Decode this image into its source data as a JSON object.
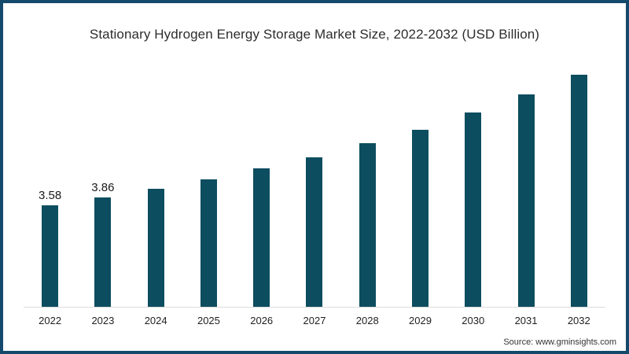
{
  "title": "Stationary Hydrogen Energy Storage Market Size, 2022-2032 (USD Billion)",
  "source_credit": "Source: www.gminsights.com",
  "colors": {
    "bar": "#0d4d60",
    "frame_border": "#14496b",
    "axis_line": "#dcdcdc",
    "title_text": "#2d2d2d",
    "label_text": "#1a1a1a",
    "background": "#ffffff"
  },
  "chart_data": {
    "type": "bar",
    "title": "Stationary Hydrogen Energy Storage Market Size, 2022-2032 (USD Billion)",
    "categories": [
      "2022",
      "2023",
      "2024",
      "2025",
      "2026",
      "2027",
      "2028",
      "2029",
      "2030",
      "2031",
      "2032"
    ],
    "values": [
      3.58,
      3.86,
      4.16,
      4.5,
      4.88,
      5.27,
      5.76,
      6.24,
      6.85,
      7.49,
      8.19
    ],
    "value_labels": [
      "3.58",
      "3.86",
      "",
      "",
      "",
      "",
      "",
      "",
      "",
      "",
      ""
    ],
    "xlabel": "",
    "ylabel": "",
    "ylim": [
      0,
      8.6
    ],
    "grid": false,
    "legend": false,
    "bar_color": "#0d4d60",
    "source": "Source: www.gminsights.com"
  }
}
